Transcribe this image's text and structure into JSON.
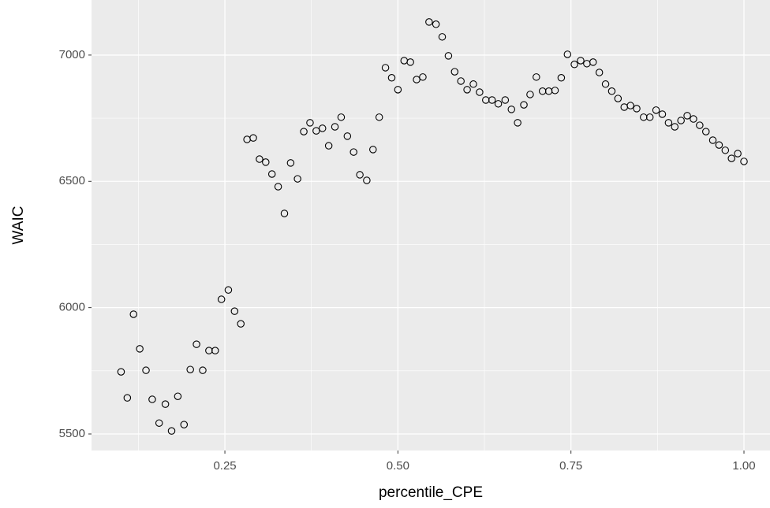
{
  "chart_data": {
    "type": "scatter",
    "x_label": "percentile_CPE",
    "y_label": "WAIC",
    "x": [
      0.1,
      0.109,
      0.118,
      0.127,
      0.136,
      0.145,
      0.155,
      0.164,
      0.173,
      0.182,
      0.191,
      0.2,
      0.209,
      0.218,
      0.227,
      0.236,
      0.245,
      0.255,
      0.264,
      0.273,
      0.282,
      0.291,
      0.3,
      0.309,
      0.318,
      0.327,
      0.336,
      0.345,
      0.355,
      0.364,
      0.373,
      0.382,
      0.391,
      0.4,
      0.409,
      0.418,
      0.427,
      0.436,
      0.445,
      0.455,
      0.464,
      0.473,
      0.482,
      0.491,
      0.5,
      0.509,
      0.518,
      0.527,
      0.536,
      0.545,
      0.555,
      0.564,
      0.573,
      0.582,
      0.591,
      0.6,
      0.609,
      0.618,
      0.627,
      0.636,
      0.645,
      0.655,
      0.664,
      0.673,
      0.682,
      0.691,
      0.7,
      0.709,
      0.718,
      0.727,
      0.736,
      0.745,
      0.755,
      0.764,
      0.773,
      0.782,
      0.791,
      0.8,
      0.809,
      0.818,
      0.827,
      0.836,
      0.845,
      0.855,
      0.864,
      0.873,
      0.882,
      0.891,
      0.9,
      0.909,
      0.918,
      0.927,
      0.936,
      0.945,
      0.955,
      0.964,
      0.973,
      0.982,
      0.991,
      1.0
    ],
    "values": [
      5746,
      5643,
      5974,
      5837,
      5752,
      5637,
      5543,
      5618,
      5512,
      5649,
      5537,
      5755,
      5855,
      5752,
      5830,
      5830,
      6033,
      6070,
      5986,
      5936,
      6666,
      6672,
      6588,
      6576,
      6529,
      6479,
      6373,
      6573,
      6510,
      6697,
      6732,
      6700,
      6710,
      6641,
      6716,
      6754,
      6679,
      6616,
      6526,
      6504,
      6626,
      6754,
      6950,
      6910,
      6863,
      6978,
      6972,
      6903,
      6913,
      7131,
      7122,
      7072,
      6997,
      6934,
      6897,
      6863,
      6885,
      6853,
      6822,
      6822,
      6807,
      6822,
      6785,
      6732,
      6803,
      6844,
      6913,
      6857,
      6857,
      6860,
      6910,
      7003,
      6963,
      6978,
      6966,
      6972,
      6931,
      6885,
      6857,
      6828,
      6794,
      6800,
      6788,
      6754,
      6754,
      6782,
      6766,
      6732,
      6716,
      6741,
      6760,
      6747,
      6722,
      6697,
      6663,
      6644,
      6623,
      6591,
      6610,
      6579
    ],
    "color": "#000000",
    "xlim": [
      0.0573,
      1.0376
    ],
    "ylim": [
      5434.5,
      7218
    ],
    "xticks": [
      {
        "value": 0.25,
        "label": "0.25"
      },
      {
        "value": 0.5,
        "label": "0.50"
      },
      {
        "value": 0.75,
        "label": "0.75"
      },
      {
        "value": 1.0,
        "label": "1.00"
      }
    ],
    "yticks": [
      5500,
      6000,
      6500,
      7000
    ],
    "grid": true
  }
}
